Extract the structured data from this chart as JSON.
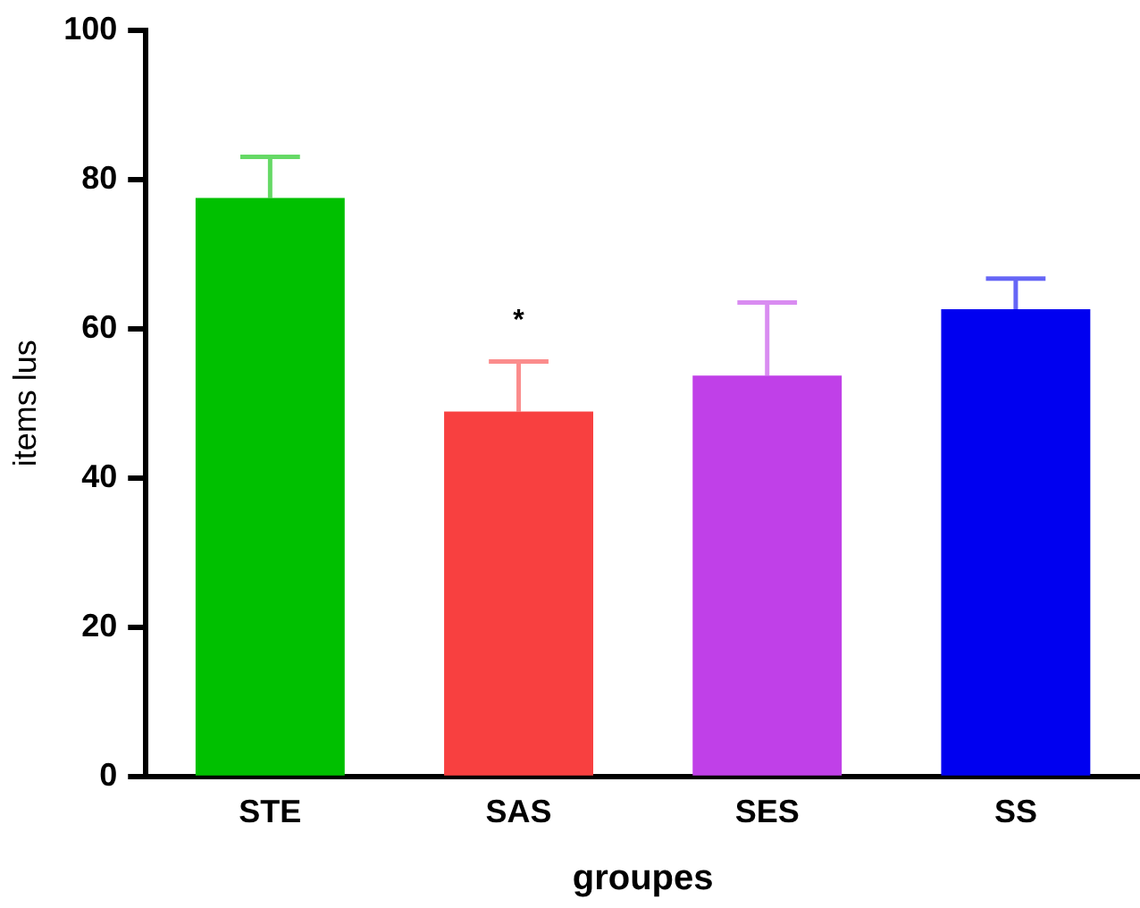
{
  "chart_data": {
    "type": "bar",
    "xlabel": "groupes",
    "ylabel": "items lus",
    "categories": [
      "STE",
      "SAS",
      "SES",
      "SS"
    ],
    "values": [
      77.5,
      48.9,
      53.7,
      62.6
    ],
    "colors": [
      "#00c000",
      "#f84040",
      "#c040e8",
      "#0000f0"
    ],
    "errors": [
      [
        77.5,
        83
      ],
      [
        48.9,
        55.6
      ],
      [
        53.7,
        63.5
      ],
      [
        62.6,
        66.7
      ]
    ],
    "ylim": [
      0,
      100
    ],
    "yticks": [
      0,
      20,
      40,
      60,
      80,
      100
    ],
    "grid": false,
    "legend": false,
    "annotations": [
      "*"
    ]
  }
}
